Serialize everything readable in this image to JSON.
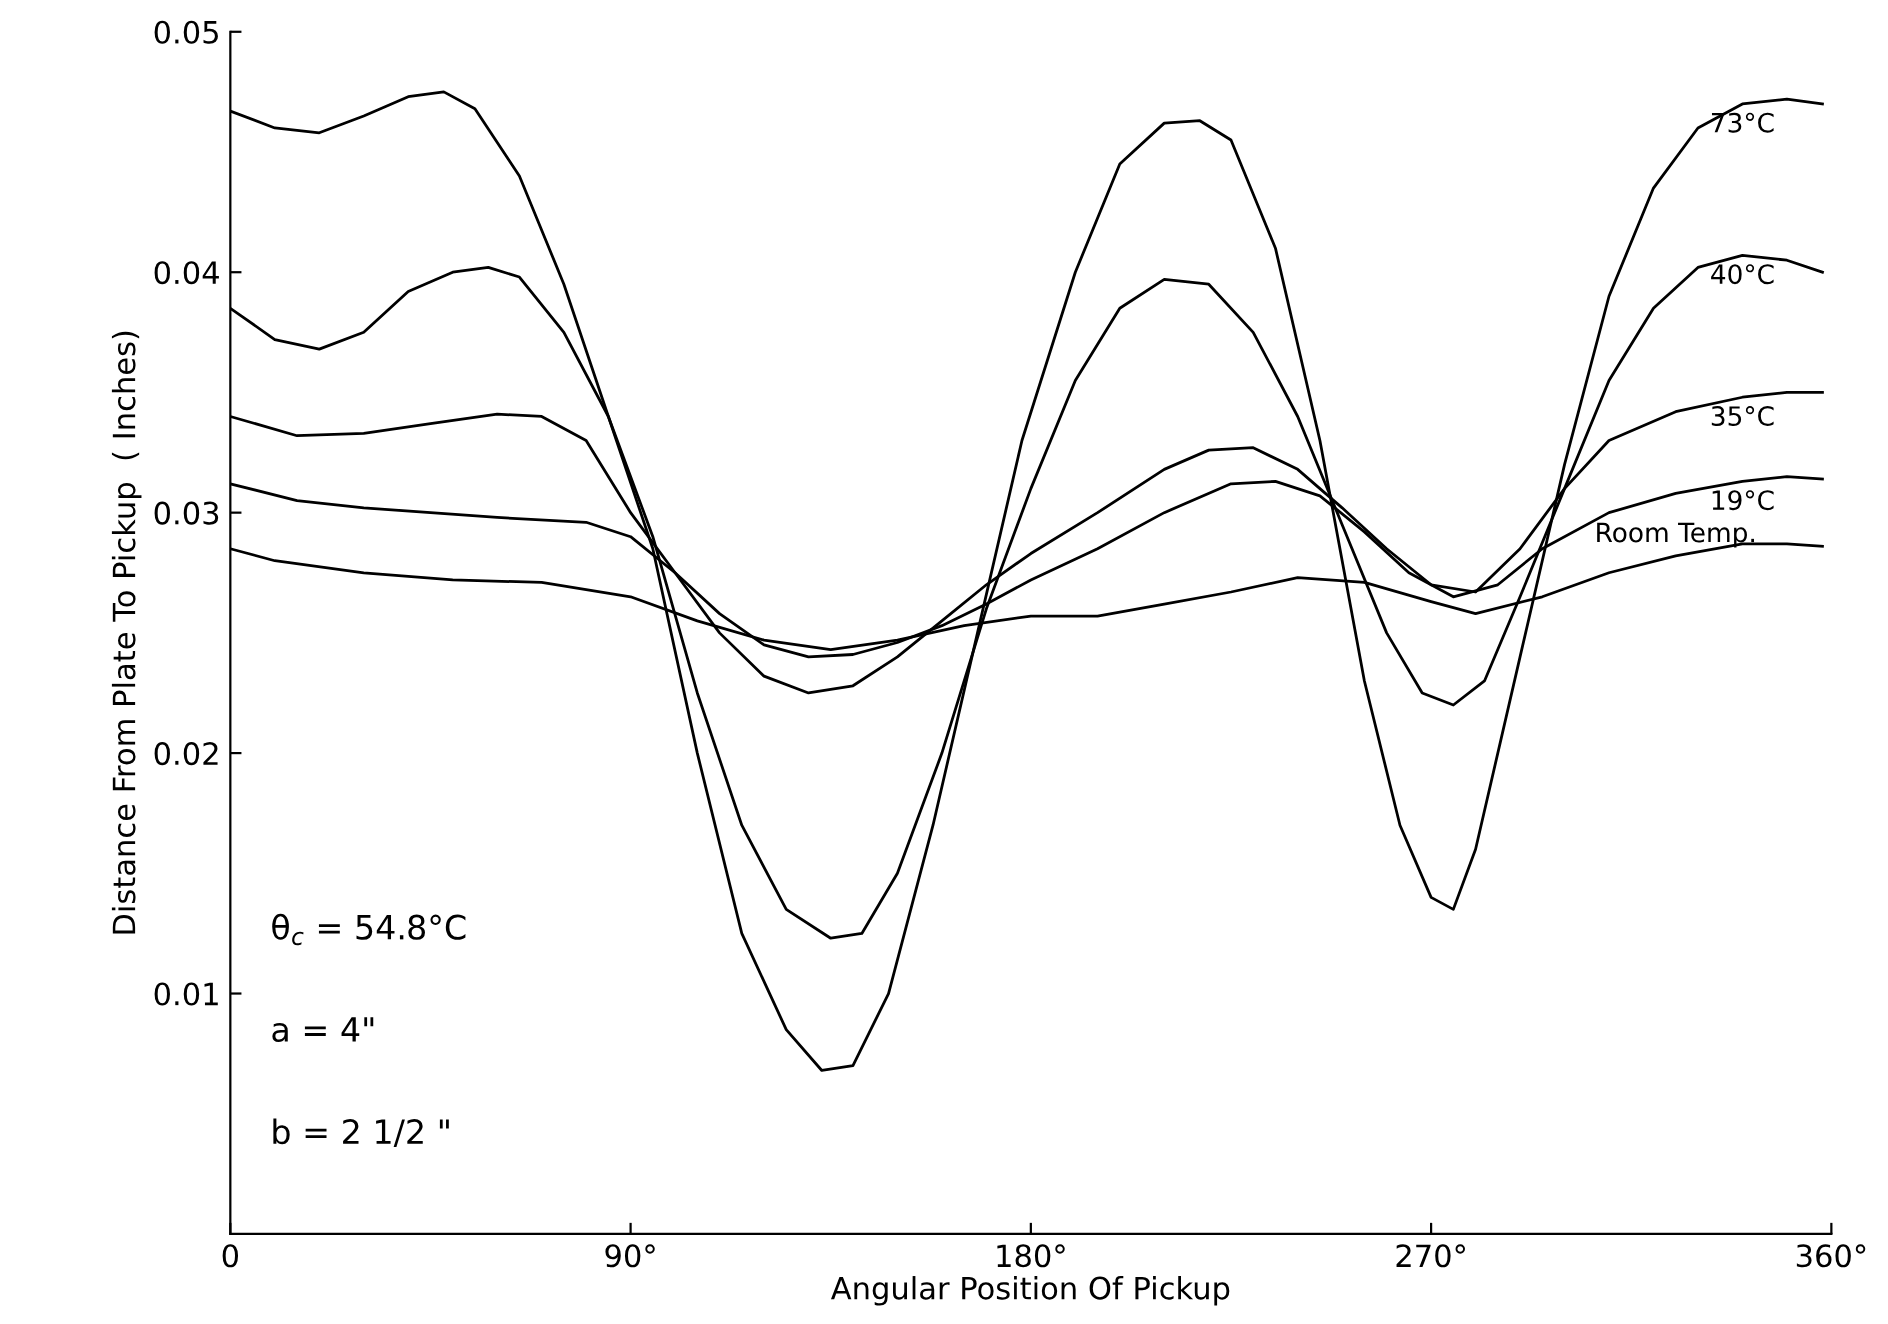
{
  "chart_data": {
    "type": "line",
    "xlabel": "Angular Position Of Pickup",
    "ylabel": "Distance From Plate To Pickup  ( Inches)",
    "xlim": [
      0,
      360
    ],
    "ylim": [
      0,
      0.05
    ],
    "xticks": [
      0,
      {
        "value": 90,
        "label": "90°"
      },
      {
        "value": 180,
        "label": "180°"
      },
      {
        "value": 270,
        "label": "270°"
      },
      {
        "value": 360,
        "label": "360°"
      }
    ],
    "yticks": [
      0.01,
      0.02,
      0.03,
      0.04,
      0.05
    ],
    "grid": false,
    "legend": false,
    "marker": "none",
    "line_style": "solid",
    "annotations": [
      "θ$_{c}$ = 54.8°C",
      "a = 4\"",
      "b = 2 1/2 \""
    ],
    "series": [
      {
        "name": "73°C",
        "color": "#000000",
        "x": [
          0,
          10,
          20,
          30,
          40,
          48,
          55,
          65,
          75,
          85,
          95,
          105,
          115,
          125,
          133,
          140,
          148,
          158,
          168,
          178,
          190,
          200,
          210,
          218,
          225,
          235,
          245,
          255,
          263,
          270,
          275,
          280,
          290,
          300,
          310,
          320,
          330,
          340,
          350,
          358
        ],
        "values": [
          0.0467,
          0.046,
          0.0458,
          0.0465,
          0.0473,
          0.0475,
          0.0468,
          0.044,
          0.0395,
          0.034,
          0.0285,
          0.02,
          0.0125,
          0.0085,
          0.0068,
          0.007,
          0.01,
          0.017,
          0.025,
          0.033,
          0.04,
          0.0445,
          0.0462,
          0.0463,
          0.0455,
          0.041,
          0.033,
          0.023,
          0.017,
          0.014,
          0.0135,
          0.016,
          0.024,
          0.032,
          0.039,
          0.0435,
          0.046,
          0.047,
          0.0472,
          0.047
        ]
      },
      {
        "name": "40°C",
        "color": "#000000",
        "x": [
          0,
          10,
          20,
          30,
          40,
          50,
          58,
          65,
          75,
          85,
          95,
          105,
          115,
          125,
          135,
          142,
          150,
          160,
          170,
          180,
          190,
          200,
          210,
          220,
          230,
          240,
          250,
          260,
          268,
          275,
          282,
          290,
          300,
          310,
          320,
          330,
          340,
          350,
          358
        ],
        "values": [
          0.0385,
          0.0372,
          0.0368,
          0.0375,
          0.0392,
          0.04,
          0.0402,
          0.0398,
          0.0375,
          0.034,
          0.029,
          0.0225,
          0.017,
          0.0135,
          0.0123,
          0.0125,
          0.015,
          0.02,
          0.026,
          0.031,
          0.0355,
          0.0385,
          0.0397,
          0.0395,
          0.0375,
          0.034,
          0.0295,
          0.025,
          0.0225,
          0.022,
          0.023,
          0.0265,
          0.031,
          0.0355,
          0.0385,
          0.0402,
          0.0407,
          0.0405,
          0.04
        ]
      },
      {
        "name": "35°C",
        "color": "#000000",
        "x": [
          0,
          15,
          30,
          45,
          60,
          70,
          80,
          90,
          100,
          110,
          120,
          130,
          140,
          150,
          160,
          170,
          180,
          195,
          210,
          220,
          230,
          240,
          250,
          260,
          270,
          280,
          290,
          300,
          310,
          325,
          340,
          350,
          358
        ],
        "values": [
          0.034,
          0.0332,
          0.0333,
          0.0337,
          0.0341,
          0.034,
          0.033,
          0.03,
          0.0275,
          0.025,
          0.0232,
          0.0225,
          0.0228,
          0.024,
          0.0255,
          0.027,
          0.0283,
          0.03,
          0.0318,
          0.0326,
          0.0327,
          0.0318,
          0.0302,
          0.0285,
          0.027,
          0.0267,
          0.0285,
          0.031,
          0.033,
          0.0342,
          0.0348,
          0.035,
          0.035
        ]
      },
      {
        "name": "19°C",
        "color": "#000000",
        "x": [
          0,
          15,
          30,
          60,
          80,
          90,
          100,
          110,
          120,
          130,
          140,
          150,
          160,
          170,
          180,
          195,
          210,
          225,
          235,
          245,
          255,
          265,
          275,
          285,
          295,
          310,
          325,
          340,
          350,
          358
        ],
        "values": [
          0.0312,
          0.0305,
          0.0302,
          0.0298,
          0.0296,
          0.029,
          0.0275,
          0.0258,
          0.0245,
          0.024,
          0.0241,
          0.0246,
          0.0253,
          0.0262,
          0.0272,
          0.0285,
          0.03,
          0.0312,
          0.0313,
          0.0307,
          0.0292,
          0.0275,
          0.0265,
          0.027,
          0.0285,
          0.03,
          0.0308,
          0.0313,
          0.0315,
          0.0314
        ]
      },
      {
        "name": "Room Temp.",
        "color": "#000000",
        "x": [
          0,
          10,
          30,
          50,
          70,
          90,
          105,
          120,
          135,
          150,
          165,
          180,
          195,
          210,
          225,
          240,
          255,
          270,
          280,
          295,
          310,
          325,
          340,
          350,
          358
        ],
        "values": [
          0.0285,
          0.028,
          0.0275,
          0.0272,
          0.0271,
          0.0265,
          0.0255,
          0.0247,
          0.0243,
          0.0247,
          0.0253,
          0.0257,
          0.0257,
          0.0262,
          0.0267,
          0.0273,
          0.0271,
          0.0263,
          0.0258,
          0.0265,
          0.0275,
          0.0282,
          0.0287,
          0.0287,
          0.0286
        ]
      }
    ]
  }
}
